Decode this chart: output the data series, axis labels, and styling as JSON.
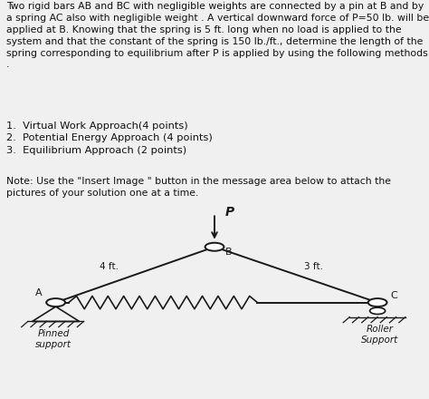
{
  "text_bg": "#f0f0f0",
  "diagram_bg": "#c8b4cc",
  "line_color": "#1a1a1a",
  "text_color": "#111111",
  "paragraph": "Two rigid bars AB and BC with negligible weights are connected by a pin at B and by\na spring AC also with negligible weight . A vertical downward force of P=50 lb. will be\napplied at B. Knowing that the spring is 5 ft. long when no load is applied to the\nsystem and that the constant of the spring is 150 lb./ft., determine the length of the\nspring corresponding to equilibrium after P is applied by using the following methods\n.",
  "list_items": "1.  Virtual Work Approach(4 points)\n2.  Potential Energy Approach (4 points)\n3.  Equilibrium Approach (2 points)",
  "note": "Note: Use the \"Insert Image \" button in the message area below to attach the\npictures of your solution one at a time.",
  "A": [
    0.13,
    0.52
  ],
  "B": [
    0.5,
    0.82
  ],
  "C": [
    0.88,
    0.52
  ],
  "label_A": "A",
  "label_B": "B",
  "label_C": "C",
  "label_P": "P",
  "label_AB": "4 ft.",
  "label_BC": "3 ft.",
  "pinned_label": "Pinned\nsupport",
  "roller_label": "Roller\nSupport",
  "text_split": 0.535,
  "diagram_split": 0.465
}
